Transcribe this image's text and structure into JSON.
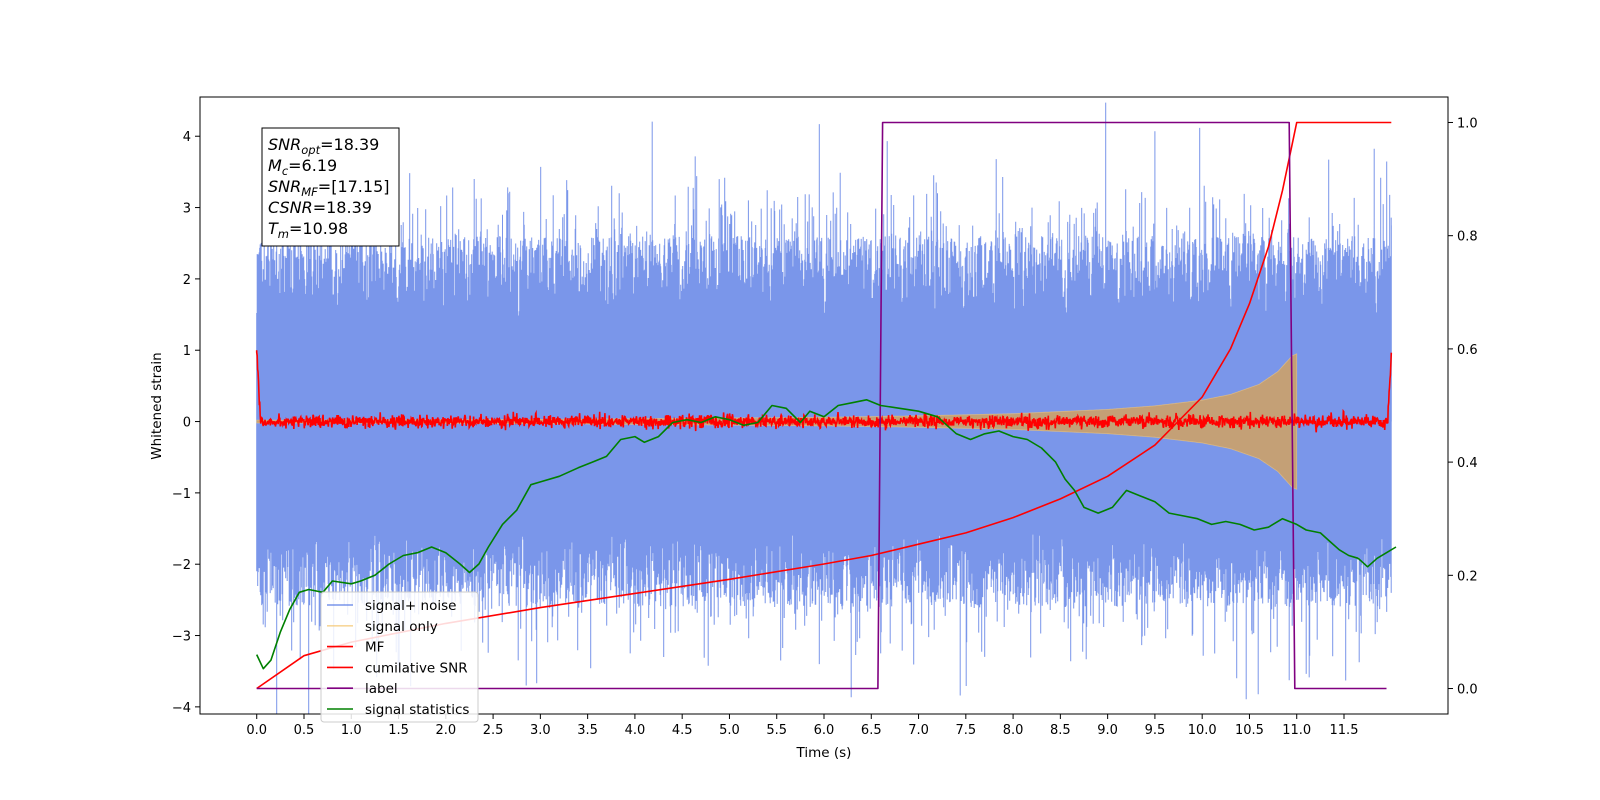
{
  "chart_data": {
    "type": "line",
    "xlabel": "Time (s)",
    "ylabel_left": "Whitened strain",
    "ylabel_right": "",
    "xlim": [
      -0.6,
      12.6
    ],
    "ylim_left": [
      -4.1,
      4.55
    ],
    "ylim_right": [
      -0.045,
      1.045
    ],
    "x_ticks": [
      0.0,
      0.5,
      1.0,
      1.5,
      2.0,
      2.5,
      3.0,
      3.5,
      4.0,
      4.5,
      5.0,
      5.5,
      6.0,
      6.5,
      7.0,
      7.5,
      8.0,
      8.5,
      9.0,
      9.5,
      10.0,
      10.5,
      11.0,
      11.5
    ],
    "x_tick_labels": [
      "0.0",
      "0.5",
      "1.0",
      "1.5",
      "2.0",
      "2.5",
      "3.0",
      "3.5",
      "4.0",
      "4.5",
      "5.0",
      "5.5",
      "6.0",
      "6.5",
      "7.0",
      "7.5",
      "8.0",
      "8.5",
      "9.0",
      "9.5",
      "10.0",
      "10.5",
      "11.0",
      "11.5"
    ],
    "y_ticks_left": [
      -4,
      -3,
      -2,
      -1,
      0,
      1,
      2,
      3,
      4
    ],
    "y_tick_labels_left": [
      "−4",
      "−3",
      "−2",
      "−1",
      "0",
      "1",
      "2",
      "3",
      "4"
    ],
    "y_ticks_right": [
      0.0,
      0.2,
      0.4,
      0.6,
      0.8,
      1.0
    ],
    "y_tick_labels_right": [
      "0.0",
      "0.2",
      "0.4",
      "0.6",
      "0.8",
      "1.0"
    ],
    "grid": false,
    "legend_position": "lower-left",
    "stats_box": {
      "position": "upper-left",
      "lines": [
        {
          "sym": "SNR",
          "sub": "opt",
          "value": "=18.39"
        },
        {
          "sym": "M",
          "sub": "c",
          "value": "=6.19"
        },
        {
          "sym": "SNR",
          "sub": "MF",
          "value": "=[17.15]"
        },
        {
          "sym": "CSNR",
          "sub": "",
          "value": "=18.39"
        },
        {
          "sym": "T",
          "sub": "m",
          "value": "=10.98"
        }
      ]
    },
    "series": [
      {
        "name": "signal+ noise",
        "axis": "left",
        "color": "#4169e1",
        "alpha": 0.7,
        "kind": "noise",
        "x_range": [
          0.0,
          12.0
        ],
        "noise_sigma": 0.85,
        "envelope_min": [
          -2.6,
          2.6
        ],
        "spikes": [
          [
            0.12,
            1.95
          ],
          [
            0.4,
            2.35
          ],
          [
            1.0,
            3.1
          ],
          [
            1.25,
            2.9
          ],
          [
            2.3,
            3.4
          ],
          [
            2.6,
            2.9
          ],
          [
            2.85,
            -3.7
          ],
          [
            3.2,
            2.7
          ],
          [
            4.6,
            2.75
          ],
          [
            5.2,
            3.1
          ],
          [
            5.95,
            4.17
          ],
          [
            5.95,
            -3.4
          ],
          [
            6.6,
            -3.25
          ],
          [
            7.2,
            3.2
          ],
          [
            7.7,
            -3.3
          ],
          [
            8.2,
            3.0
          ],
          [
            8.6,
            2.9
          ],
          [
            9.5,
            4.07
          ],
          [
            10.25,
            2.85
          ],
          [
            11.0,
            -2.5
          ],
          [
            11.6,
            2.3
          ],
          [
            12.0,
            2.75
          ],
          [
            0.0,
            -2.1
          ]
        ]
      },
      {
        "name": "signal only",
        "axis": "left",
        "color": "#f5c97a",
        "alpha": 0.75,
        "kind": "chirp",
        "x_range": [
          0.0,
          11.0
        ],
        "envelope": [
          [
            0.0,
            0.02
          ],
          [
            3.0,
            0.03
          ],
          [
            5.0,
            0.05
          ],
          [
            6.0,
            0.06
          ],
          [
            7.0,
            0.08
          ],
          [
            8.0,
            0.11
          ],
          [
            9.0,
            0.17
          ],
          [
            9.5,
            0.22
          ],
          [
            10.0,
            0.3
          ],
          [
            10.3,
            0.38
          ],
          [
            10.6,
            0.52
          ],
          [
            10.8,
            0.7
          ],
          [
            10.95,
            0.92
          ],
          [
            11.0,
            0.95
          ]
        ]
      },
      {
        "name": "MF",
        "axis": "left",
        "color": "#ff0000",
        "alpha": 1,
        "kind": "mf",
        "x_range": [
          0.0,
          12.0
        ],
        "noise_sigma": 0.045,
        "start_value": 1.0,
        "end_value": 0.88
      },
      {
        "name": "cumilative SNR",
        "axis": "right",
        "color": "#ff0000",
        "alpha": 1,
        "kind": "line",
        "points": [
          [
            0.0,
            0.0
          ],
          [
            0.5,
            0.058
          ],
          [
            1.0,
            0.082
          ],
          [
            2.0,
            0.115
          ],
          [
            3.0,
            0.143
          ],
          [
            4.0,
            0.168
          ],
          [
            5.0,
            0.193
          ],
          [
            6.0,
            0.22
          ],
          [
            6.5,
            0.235
          ],
          [
            7.0,
            0.255
          ],
          [
            7.5,
            0.275
          ],
          [
            8.0,
            0.302
          ],
          [
            8.5,
            0.335
          ],
          [
            9.0,
            0.375
          ],
          [
            9.5,
            0.43
          ],
          [
            10.0,
            0.515
          ],
          [
            10.3,
            0.6
          ],
          [
            10.5,
            0.68
          ],
          [
            10.7,
            0.78
          ],
          [
            10.85,
            0.88
          ],
          [
            10.95,
            0.96
          ],
          [
            11.0,
            1.0
          ],
          [
            12.0,
            1.0
          ]
        ]
      },
      {
        "name": "label",
        "axis": "right",
        "color": "#800080",
        "alpha": 1,
        "kind": "line",
        "points": [
          [
            0.0,
            0.0
          ],
          [
            6.57,
            0.0
          ],
          [
            6.62,
            1.0
          ],
          [
            10.92,
            1.0
          ],
          [
            10.98,
            0.0
          ],
          [
            11.95,
            0.0
          ]
        ]
      },
      {
        "name": "signal statistics",
        "axis": "right",
        "color": "#008000",
        "alpha": 1,
        "kind": "line",
        "points": [
          [
            0.0,
            0.06
          ],
          [
            0.07,
            0.035
          ],
          [
            0.15,
            0.05
          ],
          [
            0.25,
            0.1
          ],
          [
            0.35,
            0.14
          ],
          [
            0.45,
            0.17
          ],
          [
            0.55,
            0.175
          ],
          [
            0.7,
            0.17
          ],
          [
            0.8,
            0.19
          ],
          [
            1.0,
            0.185
          ],
          [
            1.1,
            0.19
          ],
          [
            1.25,
            0.2
          ],
          [
            1.4,
            0.22
          ],
          [
            1.55,
            0.235
          ],
          [
            1.7,
            0.24
          ],
          [
            1.85,
            0.25
          ],
          [
            2.0,
            0.24
          ],
          [
            2.15,
            0.22
          ],
          [
            2.25,
            0.205
          ],
          [
            2.35,
            0.22
          ],
          [
            2.45,
            0.25
          ],
          [
            2.6,
            0.29
          ],
          [
            2.75,
            0.315
          ],
          [
            2.9,
            0.36
          ],
          [
            3.0,
            0.365
          ],
          [
            3.2,
            0.375
          ],
          [
            3.4,
            0.39
          ],
          [
            3.55,
            0.4
          ],
          [
            3.7,
            0.41
          ],
          [
            3.85,
            0.44
          ],
          [
            4.0,
            0.445
          ],
          [
            4.1,
            0.435
          ],
          [
            4.25,
            0.445
          ],
          [
            4.4,
            0.47
          ],
          [
            4.55,
            0.475
          ],
          [
            4.7,
            0.47
          ],
          [
            4.85,
            0.48
          ],
          [
            5.0,
            0.475
          ],
          [
            5.15,
            0.465
          ],
          [
            5.3,
            0.47
          ],
          [
            5.45,
            0.5
          ],
          [
            5.6,
            0.495
          ],
          [
            5.75,
            0.47
          ],
          [
            5.85,
            0.49
          ],
          [
            6.0,
            0.48
          ],
          [
            6.15,
            0.5
          ],
          [
            6.3,
            0.505
          ],
          [
            6.45,
            0.51
          ],
          [
            6.6,
            0.5
          ],
          [
            6.8,
            0.495
          ],
          [
            7.0,
            0.49
          ],
          [
            7.2,
            0.48
          ],
          [
            7.4,
            0.45
          ],
          [
            7.55,
            0.44
          ],
          [
            7.7,
            0.45
          ],
          [
            7.85,
            0.455
          ],
          [
            8.0,
            0.445
          ],
          [
            8.15,
            0.44
          ],
          [
            8.3,
            0.425
          ],
          [
            8.45,
            0.4
          ],
          [
            8.55,
            0.37
          ],
          [
            8.65,
            0.35
          ],
          [
            8.75,
            0.32
          ],
          [
            8.9,
            0.31
          ],
          [
            9.05,
            0.32
          ],
          [
            9.2,
            0.35
          ],
          [
            9.35,
            0.34
          ],
          [
            9.5,
            0.33
          ],
          [
            9.65,
            0.31
          ],
          [
            9.8,
            0.305
          ],
          [
            9.95,
            0.3
          ],
          [
            10.1,
            0.29
          ],
          [
            10.25,
            0.295
          ],
          [
            10.4,
            0.29
          ],
          [
            10.55,
            0.28
          ],
          [
            10.7,
            0.285
          ],
          [
            10.85,
            0.3
          ],
          [
            11.0,
            0.29
          ],
          [
            11.1,
            0.28
          ],
          [
            11.25,
            0.275
          ],
          [
            11.35,
            0.26
          ],
          [
            11.45,
            0.245
          ],
          [
            11.55,
            0.235
          ],
          [
            11.65,
            0.23
          ],
          [
            11.75,
            0.215
          ],
          [
            11.85,
            0.23
          ],
          [
            11.95,
            0.24
          ],
          [
            12.05,
            0.25
          ]
        ]
      }
    ]
  }
}
